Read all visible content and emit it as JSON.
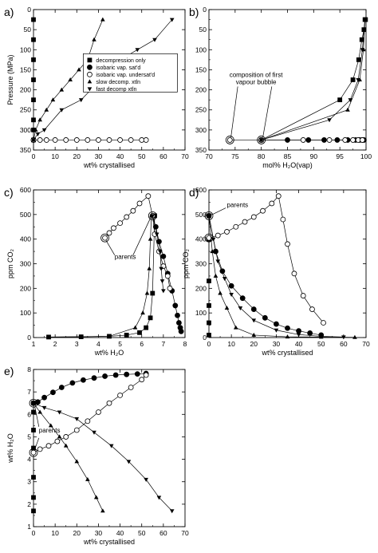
{
  "legend": [
    {
      "label": "decompression only",
      "marker": "square-filled"
    },
    {
      "label": "isobaric vap. sat'd",
      "marker": "circle-filled"
    },
    {
      "label": "isobaric vap. undersat'd",
      "marker": "circle-open"
    },
    {
      "label": "slow decomp. xtln",
      "marker": "triangle-up-filled"
    },
    {
      "label": "fast decomp xtln",
      "marker": "triangle-down-filled"
    }
  ],
  "chart_data": [
    {
      "panel": "a)",
      "type": "scatter",
      "xlabel": "wt% crystallised",
      "ylabel": "Pressure (MPa)",
      "xlim": [
        0,
        70
      ],
      "ylim": [
        0,
        350
      ],
      "y_reversed": true,
      "xticks": [
        0,
        10,
        20,
        30,
        40,
        50,
        60,
        70
      ],
      "yticks": [
        0,
        50,
        100,
        150,
        200,
        250,
        300,
        350
      ],
      "series": [
        {
          "name": "decompression only",
          "marker": "square-filled",
          "line": false,
          "x": [
            0,
            0,
            0,
            0,
            0,
            0,
            0,
            0
          ],
          "y": [
            25,
            75,
            125,
            175,
            225,
            275,
            300,
            325
          ]
        },
        {
          "name": "isobaric vap. sat'd",
          "marker": "circle-filled",
          "line": false,
          "x": [
            0
          ],
          "y": [
            325
          ]
        },
        {
          "name": "isobaric vap. undersat'd",
          "marker": "circle-open",
          "line": true,
          "x": [
            0,
            3,
            6,
            10,
            15,
            20,
            25,
            30,
            35,
            40,
            45,
            50,
            52
          ],
          "y": [
            325,
            325,
            325,
            325,
            325,
            325,
            325,
            325,
            325,
            325,
            325,
            325,
            325
          ]
        },
        {
          "name": "slow decomp. xtln",
          "marker": "triangle-up-filled",
          "line": true,
          "x": [
            0,
            1,
            3,
            6,
            9,
            13,
            17,
            21,
            25,
            28,
            32
          ],
          "y": [
            325,
            300,
            275,
            250,
            225,
            200,
            175,
            150,
            125,
            75,
            25
          ]
        },
        {
          "name": "fast decomp xtln",
          "marker": "triangle-down-filled",
          "line": true,
          "x": [
            0,
            2,
            5,
            13,
            22,
            31,
            40,
            48,
            56,
            64
          ],
          "y": [
            325,
            310,
            300,
            250,
            225,
            175,
            125,
            100,
            75,
            25
          ]
        }
      ]
    },
    {
      "panel": "b)",
      "type": "scatter",
      "xlabel": "mol% H₂O(vap)",
      "ylabel": "",
      "xlim": [
        70,
        100
      ],
      "ylim": [
        0,
        350
      ],
      "y_reversed": true,
      "xticks": [
        70,
        75,
        80,
        85,
        90,
        95,
        100
      ],
      "yticks": [
        0,
        50,
        100,
        150,
        200,
        250,
        300,
        350
      ],
      "annotation": [
        "composition of first",
        "vapour bubble"
      ],
      "series": [
        {
          "name": "decompression only",
          "marker": "square-filled",
          "line": true,
          "x": [
            80,
            95,
            97.5,
            98.6,
            99.2,
            99.6,
            99.8,
            99.9
          ],
          "y": [
            325,
            225,
            175,
            125,
            75,
            50,
            25,
            25
          ]
        },
        {
          "name": "isobaric vap. sat'd",
          "marker": "circle-filled",
          "line": true,
          "x": [
            80,
            85,
            89,
            92,
            94.5,
            96.5,
            98,
            98.8,
            99.3,
            99.6
          ],
          "y": [
            325,
            325,
            325,
            325,
            325,
            325,
            325,
            325,
            325,
            325
          ]
        },
        {
          "name": "isobaric vap. undersat'd",
          "marker": "circle-open",
          "line": true,
          "x": [
            74,
            80,
            88,
            93,
            96,
            97.5,
            98.5,
            99.3
          ],
          "y": [
            325,
            325,
            325,
            325,
            325,
            325,
            325,
            325
          ]
        },
        {
          "name": "slow decomp. xtln",
          "marker": "triangle-up-filled",
          "line": true,
          "x": [
            80,
            96.5,
            98.8,
            99.5,
            99.8
          ],
          "y": [
            325,
            250,
            175,
            100,
            25
          ]
        },
        {
          "name": "fast decomp xtln",
          "marker": "triangle-down-filled",
          "line": true,
          "x": [
            80,
            93,
            97,
            98.5,
            99.3,
            99.8
          ],
          "y": [
            325,
            275,
            225,
            175,
            100,
            25
          ]
        }
      ]
    },
    {
      "panel": "c)",
      "type": "scatter",
      "xlabel": "wt% H₂O",
      "ylabel": "ppm CO₂",
      "xlim": [
        1,
        8
      ],
      "ylim": [
        0,
        600
      ],
      "y_reversed": false,
      "xticks": [
        1,
        2,
        3,
        4,
        5,
        6,
        7,
        8
      ],
      "yticks": [
        0,
        100,
        200,
        300,
        400,
        500,
        600
      ],
      "annotation": [
        "parents"
      ],
      "series": [
        {
          "name": "decompression only",
          "marker": "square-filled",
          "line": true,
          "x": [
            1.7,
            3.2,
            4.5,
            5.3,
            5.9,
            6.2,
            6.4,
            6.5,
            6.6
          ],
          "y": [
            2,
            3,
            5,
            10,
            20,
            40,
            80,
            180,
            495
          ]
        },
        {
          "name": "isobaric vap. sat'd",
          "marker": "circle-filled",
          "line": true,
          "x": [
            6.5,
            6.65,
            6.8,
            7.0,
            7.2,
            7.4,
            7.55,
            7.65,
            7.72,
            7.78,
            7.82
          ],
          "y": [
            495,
            450,
            390,
            330,
            260,
            190,
            130,
            90,
            60,
            40,
            25
          ]
        },
        {
          "name": "isobaric vap. undersat'd",
          "marker": "circle-open",
          "line": true,
          "x": [
            4.3,
            4.5,
            4.7,
            5.0,
            5.3,
            5.6,
            5.9,
            6.3,
            6.5,
            6.6,
            6.8,
            7.0,
            7.2,
            7.3
          ],
          "y": [
            405,
            425,
            445,
            465,
            490,
            515,
            545,
            575,
            495,
            420,
            350,
            290,
            250,
            200
          ]
        },
        {
          "name": "slow decomp. xtln",
          "marker": "triangle-up-filled",
          "line": true,
          "x": [
            1.7,
            4.5,
            5.7,
            6.05,
            6.25,
            6.35,
            6.4,
            6.45
          ],
          "y": [
            2,
            5,
            40,
            100,
            180,
            280,
            400,
            495
          ]
        },
        {
          "name": "fast decomp xtln",
          "marker": "triangle-down-filled",
          "line": true,
          "x": [
            6.5,
            6.7,
            6.85,
            6.9,
            6.95,
            7.0
          ],
          "y": [
            495,
            420,
            350,
            280,
            230,
            190
          ]
        }
      ]
    },
    {
      "panel": "d)",
      "type": "scatter",
      "xlabel": "wt% crystallised",
      "ylabel": "ppm CO₂",
      "xlim": [
        0,
        70
      ],
      "ylim": [
        0,
        600
      ],
      "y_reversed": false,
      "xticks": [
        0,
        10,
        20,
        30,
        40,
        50,
        60,
        70
      ],
      "yticks": [
        0,
        100,
        200,
        300,
        400,
        500,
        600
      ],
      "annotation": [
        "parents"
      ],
      "series": [
        {
          "name": "decompression only",
          "marker": "square-filled",
          "line": false,
          "x": [
            0,
            0,
            0,
            0,
            0,
            0
          ],
          "y": [
            495,
            400,
            230,
            130,
            60,
            10
          ]
        },
        {
          "name": "isobaric vap. sat'd",
          "marker": "circle-filled",
          "line": true,
          "x": [
            0,
            3,
            6,
            10,
            15,
            20,
            25,
            30,
            35,
            40,
            45,
            50
          ],
          "y": [
            495,
            350,
            270,
            210,
            160,
            115,
            80,
            55,
            38,
            27,
            18,
            10
          ]
        },
        {
          "name": "isobaric vap. undersat'd",
          "marker": "circle-open",
          "line": true,
          "x": [
            0,
            4,
            8,
            12,
            16,
            20,
            24,
            28,
            31,
            33,
            35,
            38,
            42,
            46,
            51
          ],
          "y": [
            405,
            415,
            430,
            450,
            470,
            490,
            515,
            545,
            575,
            480,
            380,
            260,
            170,
            115,
            60
          ]
        },
        {
          "name": "slow decomp. xtln",
          "marker": "triangle-up-filled",
          "line": true,
          "x": [
            0,
            1.5,
            3,
            5,
            8,
            12,
            20,
            35,
            50,
            65
          ],
          "y": [
            495,
            350,
            250,
            180,
            120,
            40,
            10,
            3,
            2,
            1
          ]
        },
        {
          "name": "fast decomp xtln",
          "marker": "triangle-down-filled",
          "line": true,
          "x": [
            0,
            2,
            4,
            7,
            10,
            14,
            20,
            30,
            40,
            50,
            60
          ],
          "y": [
            495,
            400,
            310,
            240,
            175,
            120,
            70,
            30,
            12,
            5,
            2
          ]
        }
      ]
    },
    {
      "panel": "e)",
      "type": "scatter",
      "xlabel": "wt% crystallised",
      "ylabel": "wt% H₂O",
      "xlim": [
        0,
        70
      ],
      "ylim": [
        1,
        8
      ],
      "y_reversed": false,
      "xticks": [
        0,
        10,
        20,
        30,
        40,
        50,
        60,
        70
      ],
      "yticks": [
        1,
        2,
        3,
        4,
        5,
        6,
        7,
        8
      ],
      "annotation": [
        "parents"
      ],
      "series": [
        {
          "name": "decompression only",
          "marker": "square-filled",
          "line": false,
          "x": [
            0,
            0,
            0,
            0,
            0,
            0,
            0
          ],
          "y": [
            6.5,
            6.1,
            5.3,
            4.5,
            3.2,
            2.3,
            1.7
          ]
        },
        {
          "name": "isobaric vap. sat'd",
          "marker": "circle-filled",
          "line": true,
          "x": [
            0,
            2,
            5,
            9,
            13,
            18,
            23,
            28,
            33,
            38,
            43,
            48,
            52
          ],
          "y": [
            6.5,
            6.55,
            6.75,
            6.98,
            7.2,
            7.4,
            7.53,
            7.62,
            7.7,
            7.75,
            7.78,
            7.8,
            7.82
          ]
        },
        {
          "name": "isobaric vap. undersat'd",
          "marker": "circle-open",
          "line": true,
          "x": [
            0,
            3,
            7,
            11,
            15,
            20,
            25,
            30,
            35,
            40,
            45,
            50,
            52
          ],
          "y": [
            4.3,
            4.45,
            4.6,
            4.8,
            5.0,
            5.3,
            5.7,
            6.1,
            6.5,
            6.85,
            7.2,
            7.55,
            7.75
          ]
        },
        {
          "name": "slow decomp. xtln",
          "marker": "triangle-up-filled",
          "line": true,
          "x": [
            0,
            3,
            8,
            12,
            15,
            20,
            25,
            29,
            32
          ],
          "y": [
            6.5,
            6.1,
            5.5,
            5.0,
            4.6,
            3.9,
            3.1,
            2.3,
            1.7
          ]
        },
        {
          "name": "fast decomp xtln",
          "marker": "triangle-down-filled",
          "line": true,
          "x": [
            0,
            5,
            12,
            20,
            28,
            36,
            44,
            52,
            58,
            64
          ],
          "y": [
            6.5,
            6.3,
            6.1,
            5.8,
            5.2,
            4.6,
            3.9,
            3.1,
            2.3,
            1.7
          ]
        }
      ]
    }
  ]
}
